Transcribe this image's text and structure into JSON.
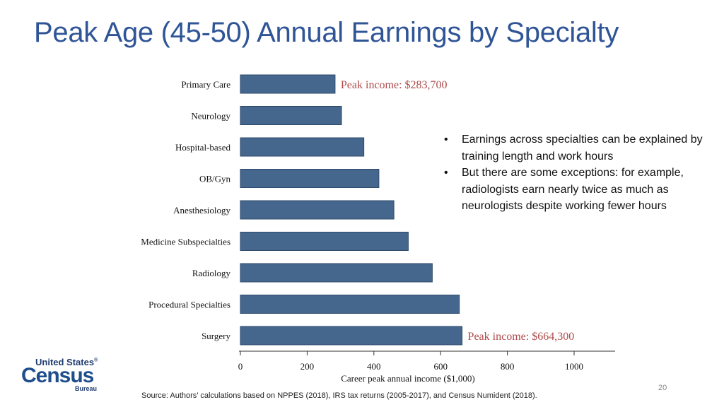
{
  "slide": {
    "title": "Peak Age (45-50) Annual Earnings by Specialty",
    "bullets": [
      "Earnings across specialties can be explained by training length and work hours",
      "But there are some exceptions: for example, radiologists earn nearly twice as much as neurologists despite working fewer hours"
    ],
    "bullet_symbol": "•",
    "source": "Source: Authors’ calculations based on NPPES (2018), IRS tax returns (2005-2017), and Census Numident (2018).",
    "page_number": "20"
  },
  "logo": {
    "top": "United States",
    "reg": "®",
    "main": "Census",
    "sub": "Bureau"
  },
  "chart_data": {
    "type": "bar",
    "orientation": "horizontal",
    "categories": [
      "Primary Care",
      "Neurology",
      "Hospital-based",
      "OB/Gyn",
      "Anesthesiology",
      "Medicine Subspecialties",
      "Radiology",
      "Procedural Specialties",
      "Surgery"
    ],
    "values": [
      283.7,
      303,
      370,
      415,
      460,
      503,
      575,
      656,
      664.3
    ],
    "xlabel": "Career peak annual income ($1,000)",
    "xlim": [
      0,
      1000
    ],
    "xticks": [
      0,
      200,
      400,
      600,
      800,
      1000
    ],
    "annotations": [
      {
        "category": "Primary Care",
        "text": "Peak income: $283,700"
      },
      {
        "category": "Surgery",
        "text": "Peak income: $664,300"
      }
    ],
    "grid": false,
    "colors": {
      "bar_fill": "#46678D",
      "bar_edge": "#2E4A6B",
      "annotation": "#AE4B4A",
      "axis": "#333333"
    }
  }
}
